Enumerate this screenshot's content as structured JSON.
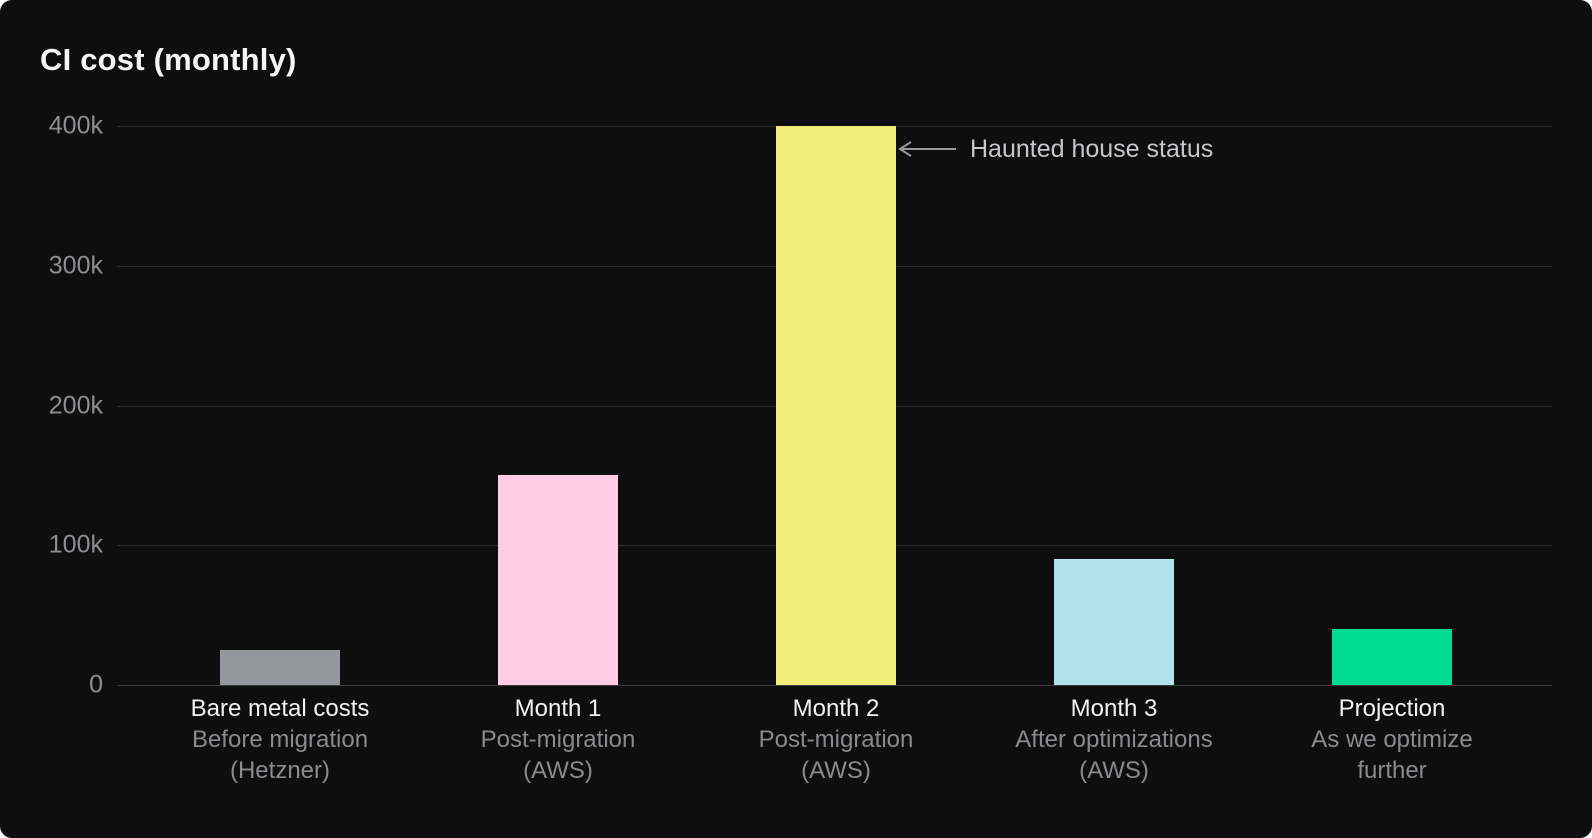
{
  "title": "CI cost (monthly)",
  "annotation": {
    "text": "Haunted house status",
    "icon": "left-arrow-icon"
  },
  "colors": {
    "background": "#0e0e0e",
    "title_text": "#f5f5f7",
    "tick_text": "#8e8e93",
    "grid_line": "#2c2c2e",
    "zero_line": "#3a3a3c",
    "category_main_text": "#f2f2f4",
    "category_sub_text": "#8a8a8f",
    "annotation_text": "#c7c7cc",
    "arrow": "#97979c"
  },
  "chart_data": {
    "type": "bar",
    "title": "CI cost (monthly)",
    "categories": [
      "Bare metal costs",
      "Month 1",
      "Month 2",
      "Month 3",
      "Projection"
    ],
    "category_sublabels": [
      [
        "Before migration",
        "(Hetzner)"
      ],
      [
        "Post-migration",
        "(AWS)"
      ],
      [
        "Post-migration",
        "(AWS)"
      ],
      [
        "After optimizations",
        "(AWS)"
      ],
      [
        "As we optimize",
        "further"
      ]
    ],
    "series": [
      {
        "name": "CI cost",
        "values": [
          25000,
          150000,
          400000,
          90000,
          40000
        ]
      }
    ],
    "bar_colors": [
      "#95979e",
      "#fecde4",
      "#f1ef79",
      "#b1e1eb",
      "#00dc92"
    ],
    "xlabel": "",
    "ylabel": "",
    "ylim": [
      0,
      400000
    ],
    "yticks": [
      {
        "value": 400000,
        "label": "400k"
      },
      {
        "value": 300000,
        "label": "300k"
      },
      {
        "value": 200000,
        "label": "200k"
      },
      {
        "value": 100000,
        "label": "100k"
      },
      {
        "value": 0,
        "label": "0"
      }
    ],
    "grid": true,
    "legend": false,
    "annotations": [
      {
        "text": "Haunted house status",
        "arrow": "left",
        "target_category": "Month 2",
        "target_value": 400000
      }
    ]
  }
}
